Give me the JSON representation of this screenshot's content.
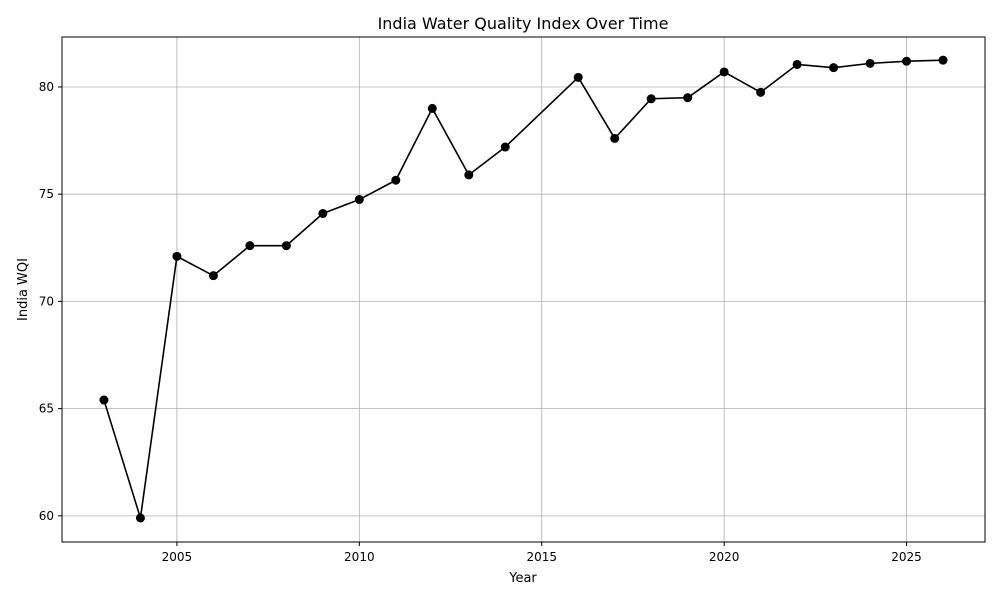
{
  "chart_data": {
    "type": "line",
    "title": "India Water Quality Index Over Time",
    "xlabel": "Year",
    "ylabel": "India WQI",
    "xlim": [
      2001.85,
      2027.15
    ],
    "ylim": [
      58.78,
      82.33
    ],
    "xticks": [
      2005,
      2010,
      2015,
      2020,
      2025
    ],
    "yticks": [
      60,
      65,
      70,
      75,
      80
    ],
    "grid": true,
    "series": [
      {
        "color": "#000000",
        "marker": "circle",
        "x": [
          2003,
          2004,
          2005,
          2006,
          2007,
          2008,
          2009,
          2010,
          2011,
          2012,
          2013,
          2014,
          2016,
          2017,
          2018,
          2019,
          2020,
          2021,
          2022,
          2023,
          2024,
          2025,
          2026
        ],
        "y": [
          65.4,
          59.9,
          72.1,
          71.2,
          72.6,
          72.6,
          74.1,
          74.75,
          75.65,
          79.0,
          75.9,
          77.2,
          80.45,
          77.6,
          79.45,
          79.5,
          80.7,
          79.75,
          81.05,
          80.9,
          81.1,
          81.2,
          81.25
        ]
      }
    ]
  }
}
